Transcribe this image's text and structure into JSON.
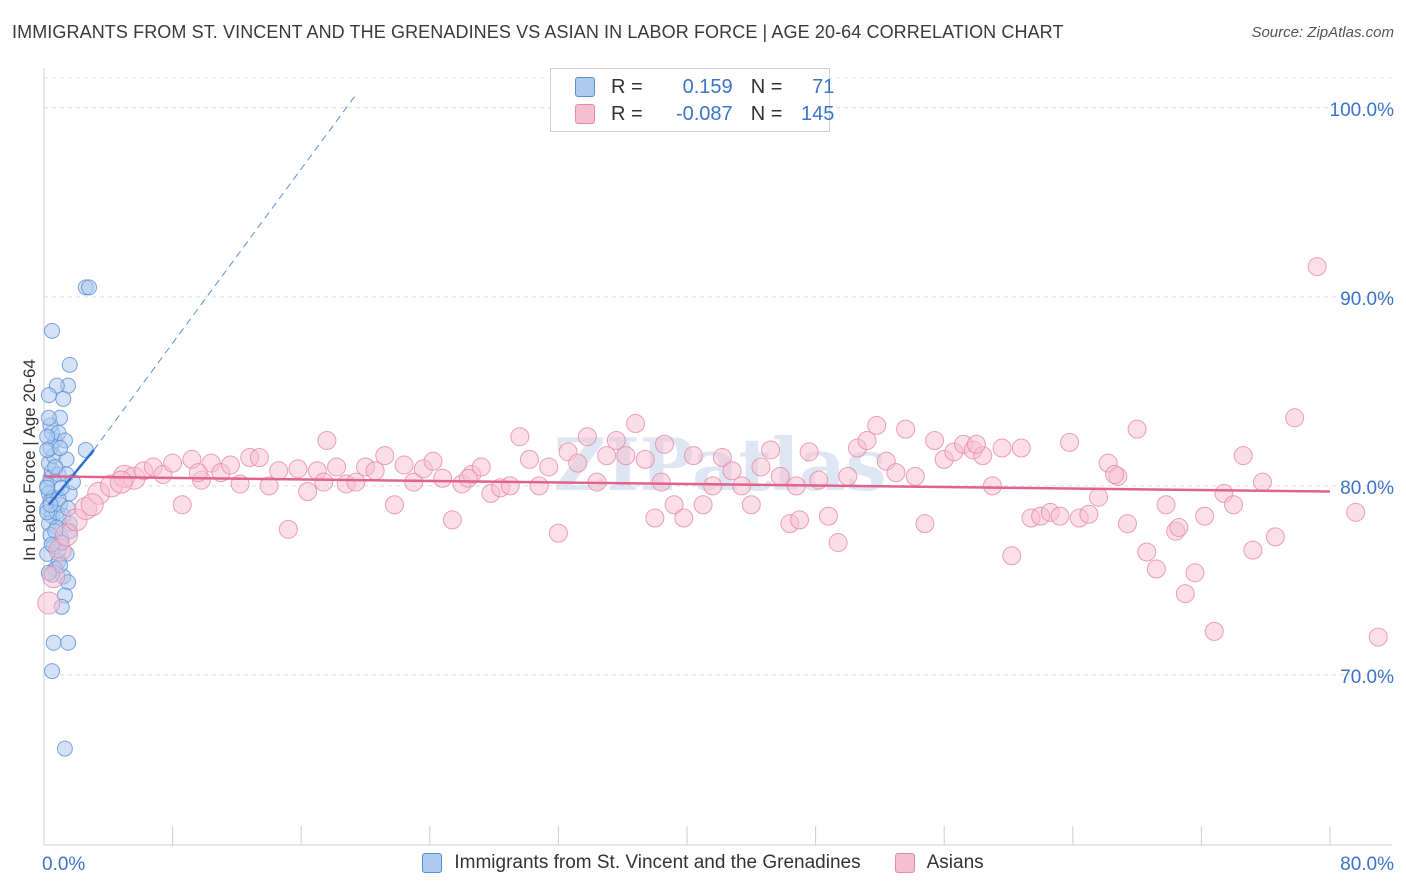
{
  "chart_data": {
    "type": "scatter",
    "title": "IMMIGRANTS FROM ST. VINCENT AND THE GRENADINES VS ASIAN IN LABOR FORCE | AGE 20-64 CORRELATION CHART",
    "source": "Source: ZipAtlas.com",
    "xlabel": "",
    "ylabel": "In Labor Force | Age 20-64",
    "xlim": [
      0,
      80
    ],
    "ylim": [
      61,
      102
    ],
    "x_tick_labels": [
      "0.0%",
      "80.0%"
    ],
    "y_ticks": [
      70,
      80,
      90,
      100
    ],
    "y_tick_labels": [
      "70.0%",
      "80.0%",
      "90.0%",
      "100.0%"
    ],
    "grid": "horizontal dashed",
    "legend": {
      "placement": "top-center",
      "entries": [
        {
          "r_label": "R =",
          "r_value": "0.159",
          "n_label": "N =",
          "n_value": "71",
          "color": "#aecbef",
          "border": "#5b8fd6"
        },
        {
          "r_label": "R =",
          "r_value": "-0.087",
          "n_label": "N =",
          "n_value": "145",
          "color": "#f7bdd0",
          "border": "#e58aa8"
        }
      ]
    },
    "series": [
      {
        "name": "Immigrants from St. Vincent and the Grenadines",
        "color": "#5b8fd6",
        "fill": "#aecbef",
        "trend": {
          "x": [
            0.3,
            3.1
          ],
          "y": [
            79.0,
            81.9
          ],
          "extended_to": [
            19.5,
            100.8
          ]
        },
        "points": [
          [
            0.2,
            80.0
          ],
          [
            0.3,
            79.6
          ],
          [
            0.4,
            79.2
          ],
          [
            0.2,
            78.8
          ],
          [
            0.5,
            78.4
          ],
          [
            0.3,
            78.0
          ],
          [
            0.6,
            79.4
          ],
          [
            0.8,
            78.6
          ],
          [
            0.4,
            80.4
          ],
          [
            0.5,
            80.8
          ],
          [
            0.3,
            81.2
          ],
          [
            0.6,
            81.6
          ],
          [
            0.4,
            82.0
          ],
          [
            0.7,
            82.4
          ],
          [
            0.5,
            82.8
          ],
          [
            0.9,
            80.6
          ],
          [
            1.0,
            79.0
          ],
          [
            1.2,
            78.4
          ],
          [
            0.8,
            77.8
          ],
          [
            1.1,
            77.2
          ],
          [
            0.4,
            77.4
          ],
          [
            0.6,
            76.8
          ],
          [
            1.4,
            76.4
          ],
          [
            0.9,
            76.0
          ],
          [
            0.7,
            75.6
          ],
          [
            1.2,
            75.2
          ],
          [
            1.5,
            74.9
          ],
          [
            0.5,
            75.3
          ],
          [
            1.3,
            74.2
          ],
          [
            1.1,
            73.6
          ],
          [
            0.6,
            71.7
          ],
          [
            1.5,
            71.7
          ],
          [
            0.5,
            70.2
          ],
          [
            1.3,
            66.1
          ],
          [
            2.6,
            90.5
          ],
          [
            2.8,
            90.5
          ],
          [
            0.5,
            88.2
          ],
          [
            1.6,
            86.4
          ],
          [
            1.5,
            85.3
          ],
          [
            0.8,
            85.3
          ],
          [
            1.2,
            84.6
          ],
          [
            0.3,
            84.8
          ],
          [
            1.0,
            83.6
          ],
          [
            0.4,
            83.2
          ],
          [
            0.9,
            82.8
          ],
          [
            1.3,
            82.4
          ],
          [
            0.2,
            82.6
          ],
          [
            1.4,
            81.4
          ],
          [
            2.6,
            81.9
          ],
          [
            1.4,
            80.6
          ],
          [
            1.6,
            79.6
          ],
          [
            0.2,
            79.9
          ],
          [
            0.9,
            79.3
          ],
          [
            1.6,
            78.0
          ],
          [
            0.2,
            78.6
          ],
          [
            0.7,
            77.6
          ],
          [
            1.6,
            77.6
          ],
          [
            0.9,
            76.6
          ],
          [
            1.1,
            77.0
          ],
          [
            0.2,
            76.4
          ],
          [
            0.5,
            76.9
          ],
          [
            1.0,
            75.8
          ],
          [
            0.3,
            75.4
          ],
          [
            0.2,
            81.9
          ],
          [
            0.7,
            81.0
          ],
          [
            1.1,
            79.9
          ],
          [
            1.5,
            78.8
          ],
          [
            0.4,
            79.0
          ],
          [
            1.8,
            80.2
          ],
          [
            0.3,
            83.6
          ],
          [
            1.0,
            82.0
          ]
        ]
      },
      {
        "name": "Asians",
        "color": "#e58aa8",
        "fill": "#f7bdd0",
        "trend": {
          "x": [
            0.0,
            80.0
          ],
          "y": [
            80.5,
            79.7
          ]
        },
        "points": [
          [
            0.3,
            73.8
          ],
          [
            0.6,
            75.2
          ],
          [
            1.0,
            76.6
          ],
          [
            1.4,
            77.4
          ],
          [
            2.0,
            78.2
          ],
          [
            2.6,
            78.8
          ],
          [
            3.4,
            79.6
          ],
          [
            4.2,
            80.0
          ],
          [
            5.0,
            80.5
          ],
          [
            5.6,
            80.4
          ],
          [
            6.2,
            80.8
          ],
          [
            6.8,
            81.0
          ],
          [
            7.4,
            80.6
          ],
          [
            8.0,
            81.2
          ],
          [
            8.6,
            79.0
          ],
          [
            9.2,
            81.4
          ],
          [
            9.8,
            80.3
          ],
          [
            10.4,
            81.2
          ],
          [
            11.0,
            80.7
          ],
          [
            11.6,
            81.1
          ],
          [
            12.2,
            80.1
          ],
          [
            12.8,
            81.5
          ],
          [
            13.4,
            81.5
          ],
          [
            14.0,
            80.0
          ],
          [
            14.6,
            80.8
          ],
          [
            15.2,
            77.7
          ],
          [
            15.8,
            80.9
          ],
          [
            16.4,
            79.7
          ],
          [
            17.0,
            80.8
          ],
          [
            17.6,
            82.4
          ],
          [
            18.2,
            81.0
          ],
          [
            18.8,
            80.1
          ],
          [
            19.4,
            80.2
          ],
          [
            20.0,
            81.0
          ],
          [
            20.6,
            80.8
          ],
          [
            21.2,
            81.6
          ],
          [
            21.8,
            79.0
          ],
          [
            22.4,
            81.1
          ],
          [
            23.0,
            80.2
          ],
          [
            23.6,
            80.9
          ],
          [
            24.2,
            81.3
          ],
          [
            24.8,
            80.4
          ],
          [
            25.4,
            78.2
          ],
          [
            26.0,
            80.1
          ],
          [
            26.6,
            80.6
          ],
          [
            27.2,
            81.0
          ],
          [
            27.8,
            79.6
          ],
          [
            28.4,
            79.9
          ],
          [
            29.0,
            80.0
          ],
          [
            29.6,
            82.6
          ],
          [
            30.2,
            81.4
          ],
          [
            30.8,
            80.0
          ],
          [
            31.4,
            81.0
          ],
          [
            32.0,
            77.5
          ],
          [
            32.6,
            81.8
          ],
          [
            33.2,
            81.2
          ],
          [
            33.8,
            82.6
          ],
          [
            34.4,
            80.2
          ],
          [
            35.0,
            81.6
          ],
          [
            35.6,
            82.4
          ],
          [
            36.2,
            81.6
          ],
          [
            36.8,
            83.3
          ],
          [
            37.4,
            81.4
          ],
          [
            38.0,
            78.3
          ],
          [
            38.6,
            82.2
          ],
          [
            39.2,
            79.0
          ],
          [
            39.8,
            78.3
          ],
          [
            40.4,
            81.6
          ],
          [
            41.0,
            79.0
          ],
          [
            41.6,
            80.0
          ],
          [
            42.2,
            81.5
          ],
          [
            42.8,
            80.8
          ],
          [
            43.4,
            80.0
          ],
          [
            44.0,
            79.0
          ],
          [
            44.6,
            81.0
          ],
          [
            45.2,
            81.9
          ],
          [
            45.8,
            80.5
          ],
          [
            46.4,
            78.0
          ],
          [
            47.0,
            78.2
          ],
          [
            47.6,
            81.8
          ],
          [
            48.2,
            80.3
          ],
          [
            48.8,
            78.4
          ],
          [
            49.4,
            77.0
          ],
          [
            50.0,
            80.5
          ],
          [
            50.6,
            82.0
          ],
          [
            51.2,
            82.4
          ],
          [
            51.8,
            83.2
          ],
          [
            52.4,
            81.3
          ],
          [
            53.0,
            80.7
          ],
          [
            53.6,
            83.0
          ],
          [
            54.2,
            80.5
          ],
          [
            54.8,
            78.0
          ],
          [
            55.4,
            82.4
          ],
          [
            56.0,
            81.4
          ],
          [
            56.6,
            81.8
          ],
          [
            57.2,
            82.2
          ],
          [
            57.8,
            81.9
          ],
          [
            58.4,
            81.6
          ],
          [
            59.0,
            80.0
          ],
          [
            59.6,
            82.0
          ],
          [
            60.2,
            76.3
          ],
          [
            60.8,
            82.0
          ],
          [
            61.4,
            78.3
          ],
          [
            62.0,
            78.4
          ],
          [
            62.6,
            78.6
          ],
          [
            63.2,
            78.4
          ],
          [
            63.8,
            82.3
          ],
          [
            64.4,
            78.3
          ],
          [
            65.0,
            78.5
          ],
          [
            65.6,
            79.4
          ],
          [
            66.2,
            81.2
          ],
          [
            66.8,
            80.5
          ],
          [
            67.4,
            78.0
          ],
          [
            68.0,
            83.0
          ],
          [
            68.6,
            76.5
          ],
          [
            69.2,
            75.6
          ],
          [
            69.8,
            79.0
          ],
          [
            70.4,
            77.6
          ],
          [
            71.0,
            74.3
          ],
          [
            71.6,
            75.4
          ],
          [
            72.2,
            78.4
          ],
          [
            72.8,
            72.3
          ],
          [
            73.4,
            79.6
          ],
          [
            74.0,
            79.0
          ],
          [
            74.6,
            81.6
          ],
          [
            75.2,
            76.6
          ],
          [
            75.8,
            80.2
          ],
          [
            76.6,
            77.3
          ],
          [
            77.8,
            83.6
          ],
          [
            79.2,
            91.6
          ],
          [
            81.6,
            78.6
          ],
          [
            83.0,
            72.0
          ],
          [
            70.6,
            77.8
          ],
          [
            66.6,
            80.6
          ],
          [
            58.0,
            82.2
          ],
          [
            46.8,
            80.0
          ],
          [
            38.4,
            80.2
          ],
          [
            26.4,
            80.4
          ],
          [
            17.4,
            80.2
          ],
          [
            9.6,
            80.7
          ],
          [
            4.8,
            80.2
          ],
          [
            3.0,
            79.0
          ]
        ]
      }
    ]
  },
  "bottom_legend": [
    {
      "label": "Immigrants from St. Vincent and the Grenadines",
      "fill": "#aecbef",
      "border": "#5b8fd6"
    },
    {
      "label": "Asians",
      "fill": "#f7bdd0",
      "border": "#e58aa8"
    }
  ],
  "watermark": "ZIPatlas"
}
